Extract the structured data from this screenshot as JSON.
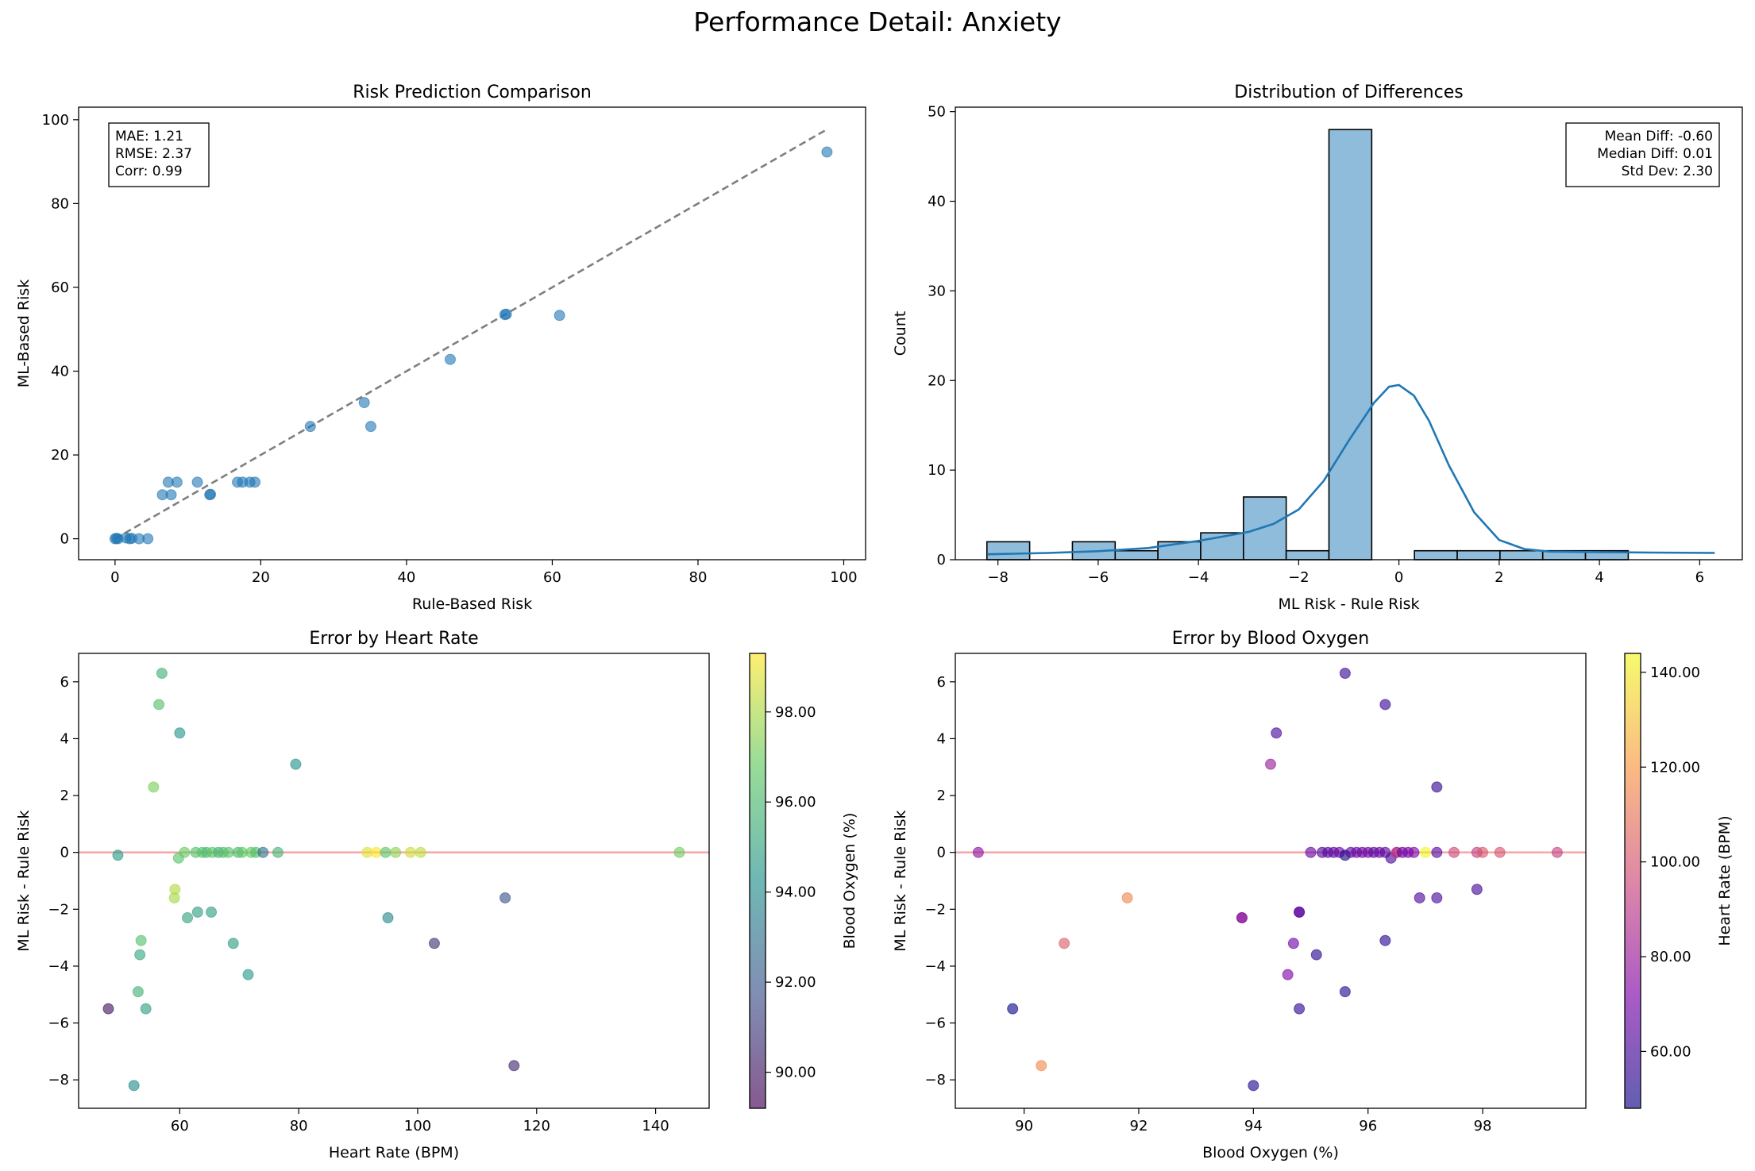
{
  "suptitle": "Performance Detail: Anxiety",
  "chart_data": [
    {
      "type": "scatter",
      "title": "Risk Prediction Comparison",
      "xlabel": "Rule-Based Risk",
      "ylabel": "ML-Based Risk",
      "xlim": [
        -5,
        103
      ],
      "ylim": [
        -5,
        103
      ],
      "xticks": [
        0,
        20,
        40,
        60,
        80,
        100
      ],
      "yticks": [
        0,
        20,
        40,
        60,
        80,
        100
      ],
      "stats": [
        "MAE: 1.21",
        "RMSE: 2.37",
        "Corr: 0.99"
      ],
      "reference_line": {
        "from": [
          0,
          0
        ],
        "to": [
          97.5,
          97.5
        ],
        "style": "dashed",
        "color": "#7f7f7f"
      },
      "color": "#1f77b4",
      "points": [
        [
          0,
          0
        ],
        [
          0.2,
          0.1
        ],
        [
          0.4,
          0
        ],
        [
          1.5,
          0.2
        ],
        [
          2,
          0
        ],
        [
          2.3,
          0.1
        ],
        [
          3.3,
          0
        ],
        [
          4.5,
          0
        ],
        [
          6.5,
          10.5
        ],
        [
          7.3,
          13.5
        ],
        [
          7.7,
          10.5
        ],
        [
          8.5,
          13.5
        ],
        [
          11.3,
          13.5
        ],
        [
          13,
          10.5
        ],
        [
          13.1,
          10.6
        ],
        [
          16.8,
          13.5
        ],
        [
          17.5,
          13.5
        ],
        [
          18.5,
          13.5
        ],
        [
          19.2,
          13.5
        ],
        [
          26.8,
          26.8
        ],
        [
          34.2,
          32.5
        ],
        [
          35.1,
          26.8
        ],
        [
          46,
          42.8
        ],
        [
          53.5,
          53.5
        ],
        [
          53.7,
          53.6
        ],
        [
          61,
          53.3
        ],
        [
          97.7,
          92.3
        ]
      ]
    },
    {
      "type": "bar",
      "title": "Distribution of Differences",
      "xlabel": "ML Risk - Rule Risk",
      "ylabel": "Count",
      "xlim": [
        -8.85,
        6.85
      ],
      "ylim": [
        0,
        50.5
      ],
      "xticks": [
        -8,
        -6,
        -4,
        -2,
        0,
        2,
        4,
        6
      ],
      "yticks": [
        0,
        10,
        20,
        30,
        40,
        50
      ],
      "stats": [
        "Mean Diff: -0.60",
        "Median Diff: 0.01",
        "Std Dev: 2.30"
      ],
      "bin_start": -8.22,
      "bin_width": 0.853,
      "counts": [
        2,
        0,
        2,
        1,
        2,
        3,
        7,
        1,
        48,
        0,
        1,
        1,
        1,
        1,
        1
      ],
      "bar_color": "#8fbcdb",
      "kde_color": "#1f77b4",
      "kde_curve": [
        [
          -8.2,
          0.6
        ],
        [
          -7,
          0.75
        ],
        [
          -6,
          0.95
        ],
        [
          -5,
          1.3
        ],
        [
          -4,
          2.1
        ],
        [
          -3,
          3.1
        ],
        [
          -2.5,
          4.0
        ],
        [
          -2,
          5.6
        ],
        [
          -1.5,
          8.8
        ],
        [
          -1,
          13.3
        ],
        [
          -0.5,
          17.5
        ],
        [
          -0.2,
          19.3
        ],
        [
          0,
          19.5
        ],
        [
          0.3,
          18.3
        ],
        [
          0.6,
          15.5
        ],
        [
          1,
          10.5
        ],
        [
          1.5,
          5.3
        ],
        [
          2,
          2.2
        ],
        [
          2.5,
          1.2
        ],
        [
          3,
          0.9
        ],
        [
          4,
          0.85
        ],
        [
          5,
          0.8
        ],
        [
          6.3,
          0.75
        ]
      ]
    },
    {
      "type": "scatter",
      "title": "Error by Heart Rate",
      "xlabel": "Heart Rate (BPM)",
      "ylabel": "ML Risk - Rule Risk",
      "xlim": [
        43,
        149
      ],
      "ylim": [
        -9,
        7
      ],
      "xticks": [
        60,
        80,
        100,
        120,
        140
      ],
      "yticks": [
        -8,
        -6,
        -4,
        -2,
        0,
        2,
        4,
        6
      ],
      "hline": {
        "y": 0,
        "color": "#f4a3a3"
      },
      "colorbar": {
        "label": "Blood Oxygen (%)",
        "min": 89.2,
        "max": 99.3,
        "ticks": [
          "90.00",
          "92.00",
          "94.00",
          "96.00",
          "98.00"
        ],
        "colormap": "viridis"
      },
      "points": [
        [
          48,
          -5.5,
          89.8
        ],
        [
          49.6,
          -0.1,
          94.6
        ],
        [
          52.3,
          -8.2,
          94.0
        ],
        [
          53,
          -4.9,
          95.6
        ],
        [
          53.3,
          -3.6,
          95.1
        ],
        [
          53.5,
          -3.1,
          96.3
        ],
        [
          54.3,
          -5.5,
          94.8
        ],
        [
          55.6,
          2.3,
          97.2
        ],
        [
          56.5,
          5.2,
          96.3
        ],
        [
          57,
          6.3,
          95.6
        ],
        [
          59.1,
          -1.6,
          97.9
        ],
        [
          59.2,
          -1.3,
          98.1
        ],
        [
          59.8,
          -0.2,
          96.4
        ],
        [
          60,
          4.2,
          94.4
        ],
        [
          60.8,
          0,
          96.9
        ],
        [
          61.3,
          -2.3,
          95
        ],
        [
          62.7,
          0,
          96.3
        ],
        [
          63,
          -2.1,
          94.8
        ],
        [
          63.8,
          0,
          96.5
        ],
        [
          64.5,
          0,
          96
        ],
        [
          65.3,
          -2.1,
          94.8
        ],
        [
          65.5,
          0,
          96.7
        ],
        [
          66.5,
          0,
          95.8
        ],
        [
          67.3,
          0,
          96.2
        ],
        [
          68.2,
          0,
          96.5
        ],
        [
          69,
          -3.2,
          94.7
        ],
        [
          69.8,
          0,
          96
        ],
        [
          70.5,
          0,
          96.7
        ],
        [
          71.5,
          -4.3,
          94.6
        ],
        [
          72,
          0,
          96.8
        ],
        [
          72.8,
          0,
          96.3
        ],
        [
          74,
          0,
          93
        ],
        [
          76.5,
          0,
          95.8
        ],
        [
          79.5,
          3.1,
          94.3
        ],
        [
          91.5,
          0,
          98.8
        ],
        [
          93,
          0,
          99.3
        ],
        [
          94.6,
          0,
          96.5
        ],
        [
          95,
          -2.3,
          93.8
        ],
        [
          96.3,
          0,
          97.5
        ],
        [
          98.8,
          0,
          98.5
        ],
        [
          100.5,
          0,
          98.3
        ],
        [
          102.8,
          -3.2,
          90.7
        ],
        [
          114.7,
          -1.6,
          91.8
        ],
        [
          116.2,
          -7.5,
          90.3
        ],
        [
          144,
          0,
          97
        ]
      ]
    },
    {
      "type": "scatter",
      "title": "Error by Blood Oxygen",
      "xlabel": "Blood Oxygen (%)",
      "ylabel": "ML Risk - Rule Risk",
      "xlim": [
        88.8,
        99.8
      ],
      "ylim": [
        -9,
        7
      ],
      "xticks": [
        90,
        92,
        94,
        96,
        98
      ],
      "yticks": [
        -8,
        -6,
        -4,
        -2,
        0,
        2,
        4,
        6
      ],
      "hline": {
        "y": 0,
        "color": "#f4a3a3"
      },
      "colorbar": {
        "label": "Heart Rate (BPM)",
        "min": 48,
        "max": 144,
        "ticks": [
          "60.00",
          "80.00",
          "100.00",
          "120.00",
          "140.00"
        ],
        "colormap": "plasma"
      },
      "points": [
        [
          89.2,
          0,
          76
        ],
        [
          89.8,
          -5.5,
          48
        ],
        [
          90.3,
          -7.5,
          116
        ],
        [
          90.7,
          -3.2,
          103
        ],
        [
          91.8,
          -1.6,
          115
        ],
        [
          93.8,
          -2.3,
          95
        ],
        [
          93.8,
          -2.3,
          70
        ],
        [
          94,
          -8.2,
          52
        ],
        [
          94.3,
          3.1,
          80
        ],
        [
          94.4,
          4.2,
          60
        ],
        [
          94.6,
          -4.3,
          72
        ],
        [
          94.7,
          -3.2,
          69
        ],
        [
          94.8,
          -2.1,
          63
        ],
        [
          94.8,
          -2.1,
          65
        ],
        [
          94.8,
          -5.5,
          54
        ],
        [
          95,
          0,
          66
        ],
        [
          95.1,
          -3.6,
          53
        ],
        [
          95.2,
          0,
          62
        ],
        [
          95.3,
          0,
          64
        ],
        [
          95.4,
          0,
          63
        ],
        [
          95.5,
          0,
          68
        ],
        [
          95.6,
          6.3,
          57
        ],
        [
          95.6,
          -4.9,
          53
        ],
        [
          95.6,
          -0.1,
          50
        ],
        [
          95.7,
          0,
          64
        ],
        [
          95.8,
          0,
          67
        ],
        [
          95.9,
          0,
          66
        ],
        [
          96,
          0,
          70
        ],
        [
          96.1,
          0,
          62
        ],
        [
          96.2,
          0,
          68
        ],
        [
          96.3,
          5.2,
          57
        ],
        [
          96.3,
          -3.1,
          54
        ],
        [
          96.3,
          0,
          64
        ],
        [
          96.4,
          -0.2,
          60
        ],
        [
          96.5,
          0,
          72
        ],
        [
          96.5,
          0,
          95
        ],
        [
          96.6,
          0,
          66
        ],
        [
          96.7,
          0,
          70
        ],
        [
          96.8,
          0,
          72
        ],
        [
          96.9,
          -1.6,
          61
        ],
        [
          97,
          0,
          144
        ],
        [
          97.2,
          2.3,
          56
        ],
        [
          97.2,
          -1.6,
          60
        ],
        [
          97.2,
          0,
          63
        ],
        [
          97.5,
          0,
          96
        ],
        [
          97.9,
          -1.3,
          59
        ],
        [
          97.9,
          0,
          92
        ],
        [
          98,
          0,
          101
        ],
        [
          98.3,
          0,
          100
        ],
        [
          99.3,
          0,
          93
        ]
      ]
    }
  ]
}
